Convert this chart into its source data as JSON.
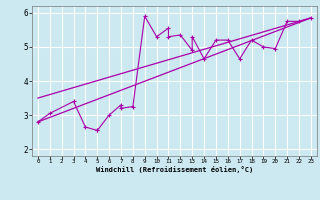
{
  "xlabel": "Windchill (Refroidissement éolien,°C)",
  "background_color": "#cce8f0",
  "line_color": "#aa00aa",
  "grid_color": "#ffffff",
  "xlim": [
    -0.5,
    23.5
  ],
  "ylim": [
    1.8,
    6.2
  ],
  "xticks": [
    0,
    1,
    2,
    3,
    4,
    5,
    6,
    7,
    8,
    9,
    10,
    11,
    12,
    13,
    14,
    15,
    16,
    17,
    18,
    19,
    20,
    21,
    22,
    23
  ],
  "yticks": [
    2,
    3,
    4,
    5,
    6
  ],
  "scatter_x": [
    0,
    1,
    3,
    4,
    5,
    5,
    6,
    7,
    7,
    8,
    9,
    10,
    11,
    11,
    12,
    13,
    13,
    14,
    15,
    16,
    17,
    18,
    19,
    20,
    21,
    22,
    23
  ],
  "scatter_y": [
    2.8,
    3.05,
    3.4,
    2.65,
    2.55,
    2.55,
    3.0,
    3.3,
    3.2,
    3.25,
    5.9,
    5.3,
    5.55,
    5.3,
    5.35,
    4.9,
    5.3,
    4.65,
    5.2,
    5.2,
    4.65,
    5.2,
    5.0,
    4.95,
    5.75,
    5.75,
    5.85
  ],
  "trend1_x": [
    0,
    23
  ],
  "trend1_y": [
    2.8,
    5.85
  ],
  "trend2_x": [
    0,
    23
  ],
  "trend2_y": [
    3.5,
    5.85
  ]
}
